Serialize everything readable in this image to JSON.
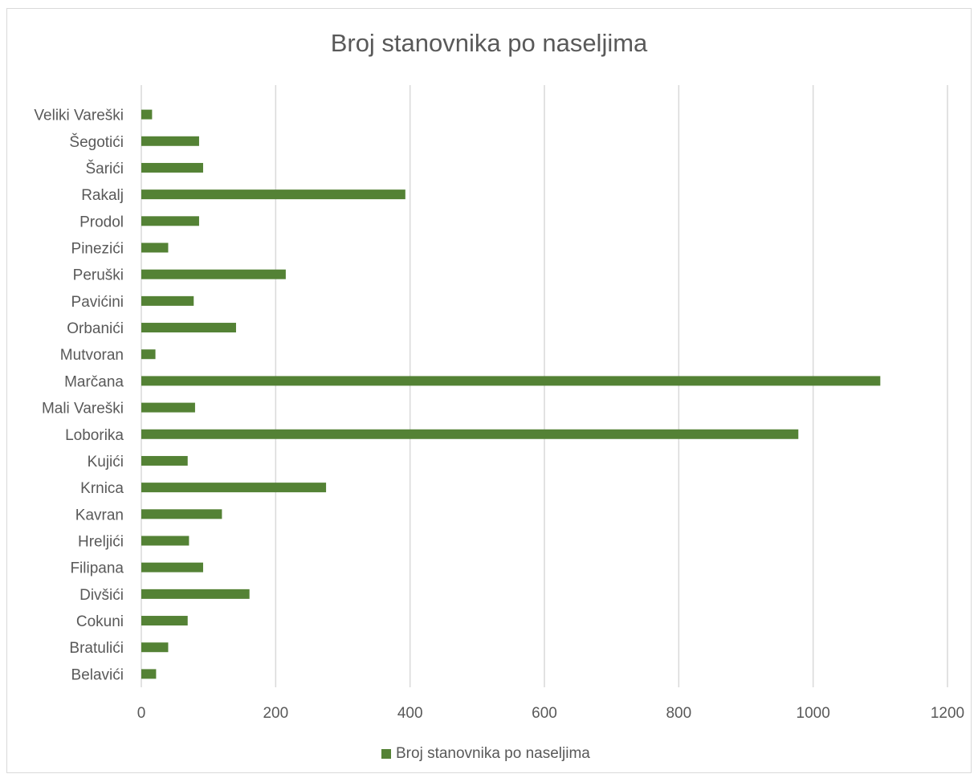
{
  "chart_data": {
    "type": "bar",
    "orientation": "horizontal",
    "title": "Broj stanovnika po naseljima",
    "xlim": [
      0,
      1200
    ],
    "xticks": [
      0,
      200,
      400,
      600,
      800,
      1000,
      1200
    ],
    "xtick_labels": [
      "0",
      "200",
      "400",
      "600",
      "800",
      "1000",
      "1200"
    ],
    "grid": "vertical",
    "legend_position": "bottom",
    "bar_color": "#548235",
    "categories": [
      "Belavići",
      "Bratulići",
      "Cokuni",
      "Divšići",
      "Filipana",
      "Hreljići",
      "Kavran",
      "Krnica",
      "Kujići",
      "Loborika",
      "Mali Vareški",
      "Marčana",
      "Mutvoran",
      "Orbanići",
      "Pavićini",
      "Peruški",
      "Pinezići",
      "Prodol",
      "Rakalj",
      "Šarići",
      "Šegotići",
      "Veliki Vareški"
    ],
    "series": [
      {
        "name": "Broj stanovnika po naseljima",
        "values": [
          22,
          40,
          69,
          161,
          92,
          71,
          120,
          275,
          69,
          978,
          80,
          1100,
          21,
          141,
          78,
          215,
          40,
          86,
          393,
          92,
          86,
          16
        ]
      }
    ]
  }
}
